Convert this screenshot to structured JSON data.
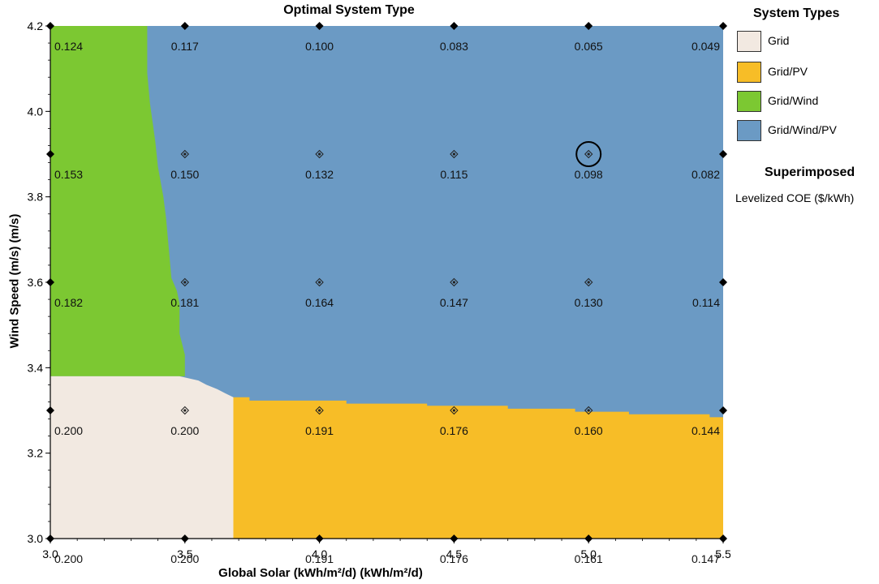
{
  "chart_data": {
    "type": "heatmap",
    "title": "Optimal System Type",
    "xlabel": "Global Solar (kWh/m²/d) (kWh/m²/d)",
    "ylabel": "Wind Speed (m/s) (m/s)",
    "xlim": [
      3.0,
      5.5
    ],
    "ylim": [
      3.0,
      4.2
    ],
    "x_ticks": [
      "3.0",
      "3.5",
      "4.0",
      "4.5",
      "5.0",
      "5.5"
    ],
    "y_ticks": [
      "3.0",
      "3.2",
      "3.4",
      "3.6",
      "3.8",
      "4.0",
      "4.2"
    ],
    "grid": false,
    "legend_position": "right",
    "system_types": [
      {
        "name": "Grid",
        "color": "#f2e9e1"
      },
      {
        "name": "Grid/PV",
        "color": "#f7bd27"
      },
      {
        "name": "Grid/Wind",
        "color": "#7cc832"
      },
      {
        "name": "Grid/Wind/PV",
        "color": "#6b9ac4"
      }
    ],
    "regions": {
      "grid_wind_boundary": [
        [
          3.36,
          4.2
        ],
        [
          3.36,
          4.09
        ],
        [
          3.37,
          4.02
        ],
        [
          3.39,
          3.93
        ],
        [
          3.4,
          3.87
        ],
        [
          3.42,
          3.8
        ],
        [
          3.43,
          3.75
        ],
        [
          3.44,
          3.68
        ],
        [
          3.45,
          3.61
        ],
        [
          3.47,
          3.58
        ],
        [
          3.48,
          3.55
        ],
        [
          3.48,
          3.48
        ],
        [
          3.5,
          3.43
        ],
        [
          3.5,
          3.38
        ]
      ],
      "pv_top_boundary": [
        [
          3.68,
          3.331
        ],
        [
          3.74,
          3.331
        ],
        [
          3.74,
          3.323
        ],
        [
          4.1,
          3.323
        ],
        [
          4.1,
          3.316
        ],
        [
          4.4,
          3.316
        ],
        [
          4.4,
          3.311
        ],
        [
          4.7,
          3.311
        ],
        [
          4.7,
          3.304
        ],
        [
          4.95,
          3.304
        ],
        [
          4.95,
          3.297
        ],
        [
          5.15,
          3.297
        ],
        [
          5.15,
          3.291
        ],
        [
          5.45,
          3.291
        ],
        [
          5.45,
          3.284
        ],
        [
          5.5,
          3.284
        ]
      ],
      "grid_region": {
        "x_max": 3.68,
        "y_max": 3.38
      },
      "grid_wind_pv_steps": [
        [
          3.48,
          3.38
        ],
        [
          3.55,
          3.37
        ],
        [
          3.58,
          3.36
        ],
        [
          3.62,
          3.35
        ],
        [
          3.65,
          3.34
        ],
        [
          3.68,
          3.331
        ]
      ]
    },
    "superimposed": {
      "label": "Levelized COE ($/kWh)",
      "x": [
        3.0,
        3.5,
        4.0,
        4.5,
        5.0,
        5.5
      ],
      "rows": [
        {
          "y": 4.2,
          "values": [
            "0.124",
            "0.117",
            "0.100",
            "0.083",
            "0.065",
            "0.049"
          ]
        },
        {
          "y": 3.9,
          "values": [
            "0.153",
            "0.150",
            "0.132",
            "0.115",
            "0.098",
            "0.082"
          ]
        },
        {
          "y": 3.6,
          "values": [
            "0.182",
            "0.181",
            "0.164",
            "0.147",
            "0.130",
            "0.114"
          ]
        },
        {
          "y": 3.3,
          "values": [
            "0.200",
            "0.200",
            "0.191",
            "0.176",
            "0.160",
            "0.144"
          ]
        },
        {
          "y": 3.0,
          "values": [
            "0.200",
            "0.200",
            "0.191",
            "0.176",
            "0.161",
            "0.147"
          ]
        }
      ],
      "interior_markers_x": [
        3.5,
        4.0,
        4.5,
        5.0
      ],
      "interior_markers_y": [
        3.9,
        3.6,
        3.3
      ],
      "highlighted_point": [
        5.0,
        3.9
      ]
    }
  },
  "legend": {
    "title": "System Types",
    "items": [
      {
        "label": "Grid",
        "color": "#f2e9e1"
      },
      {
        "label": "Grid/PV",
        "color": "#f7bd27"
      },
      {
        "label": "Grid/Wind",
        "color": "#7cc832"
      },
      {
        "label": "Grid/Wind/PV",
        "color": "#6b9ac4"
      }
    ],
    "superimposed_title": "Superimposed",
    "superimposed_label": "Levelized COE ($/kWh)"
  }
}
